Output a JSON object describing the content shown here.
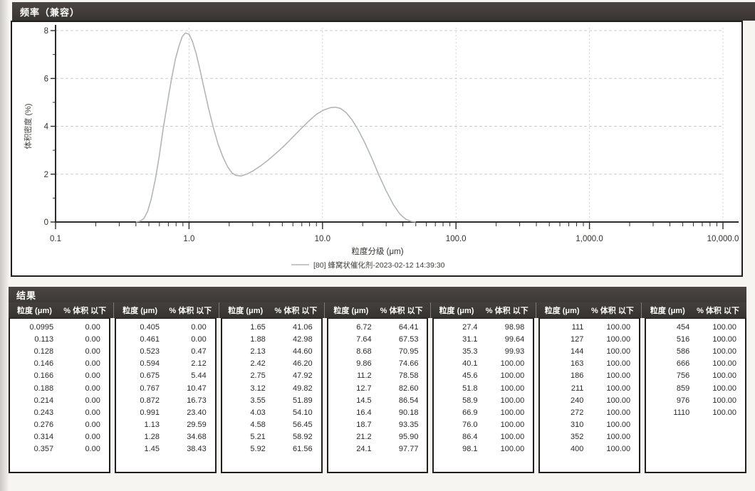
{
  "chart_panel": {
    "title": "频率（兼容）"
  },
  "chart_data": {
    "type": "line",
    "title": "频率（兼容）",
    "xlabel": "粒度分级 (μm)",
    "ylabel": "体积密度 (%)",
    "x_scale": "log",
    "xlim": [
      0.1,
      10000
    ],
    "ylim": [
      0,
      8
    ],
    "x_tick_labels": [
      "0.1",
      "1.0",
      "10.0",
      "100.0",
      "1,000.0",
      "10,000.0"
    ],
    "y_tick_values": [
      0,
      2,
      4,
      6,
      8
    ],
    "grid": true,
    "legend_position": "bottom-center",
    "series": [
      {
        "name": "[80] 蜂窝状催化剂-2023-02-12 14:39:30",
        "color": "#b3b6b9",
        "points": [
          [
            0.4,
            0.0
          ],
          [
            0.43,
            0.04
          ],
          [
            0.46,
            0.15
          ],
          [
            0.49,
            0.45
          ],
          [
            0.52,
            0.95
          ],
          [
            0.56,
            1.8
          ],
          [
            0.6,
            2.8
          ],
          [
            0.64,
            3.9
          ],
          [
            0.69,
            5.0
          ],
          [
            0.74,
            6.0
          ],
          [
            0.79,
            6.8
          ],
          [
            0.84,
            7.35
          ],
          [
            0.89,
            7.75
          ],
          [
            0.94,
            7.9
          ],
          [
            1.0,
            7.85
          ],
          [
            1.06,
            7.55
          ],
          [
            1.13,
            7.05
          ],
          [
            1.21,
            6.35
          ],
          [
            1.3,
            5.55
          ],
          [
            1.4,
            4.75
          ],
          [
            1.52,
            3.95
          ],
          [
            1.65,
            3.25
          ],
          [
            1.8,
            2.7
          ],
          [
            1.95,
            2.3
          ],
          [
            2.1,
            2.05
          ],
          [
            2.25,
            1.95
          ],
          [
            2.45,
            1.92
          ],
          [
            2.7,
            2.0
          ],
          [
            3.0,
            2.13
          ],
          [
            3.4,
            2.33
          ],
          [
            3.9,
            2.58
          ],
          [
            4.5,
            2.88
          ],
          [
            5.2,
            3.2
          ],
          [
            6.0,
            3.55
          ],
          [
            6.9,
            3.9
          ],
          [
            7.9,
            4.22
          ],
          [
            9.0,
            4.5
          ],
          [
            10.2,
            4.68
          ],
          [
            11.5,
            4.78
          ],
          [
            12.5,
            4.8
          ],
          [
            13.6,
            4.75
          ],
          [
            15.0,
            4.58
          ],
          [
            16.6,
            4.28
          ],
          [
            18.5,
            3.85
          ],
          [
            20.8,
            3.3
          ],
          [
            23.5,
            2.65
          ],
          [
            26.5,
            1.95
          ],
          [
            30.0,
            1.3
          ],
          [
            34.0,
            0.72
          ],
          [
            38.0,
            0.33
          ],
          [
            42.0,
            0.12
          ],
          [
            46.0,
            0.03
          ],
          [
            50.0,
            0.0
          ]
        ]
      }
    ]
  },
  "results_table": {
    "title": "结果",
    "column_headers": {
      "size": "粒度 (μm)",
      "pct": "% 体积 以下"
    },
    "num_groups": 7,
    "groups": [
      [
        [
          "0.0995",
          "0.00"
        ],
        [
          "0.113",
          "0.00"
        ],
        [
          "0.128",
          "0.00"
        ],
        [
          "0.146",
          "0.00"
        ],
        [
          "0.166",
          "0.00"
        ],
        [
          "0.188",
          "0.00"
        ],
        [
          "0.214",
          "0.00"
        ],
        [
          "0.243",
          "0.00"
        ],
        [
          "0.276",
          "0.00"
        ],
        [
          "0.314",
          "0.00"
        ],
        [
          "0.357",
          "0.00"
        ]
      ],
      [
        [
          "0.405",
          "0.00"
        ],
        [
          "0.461",
          "0.00"
        ],
        [
          "0.523",
          "0.47"
        ],
        [
          "0.594",
          "2.12"
        ],
        [
          "0.675",
          "5.44"
        ],
        [
          "0.767",
          "10.47"
        ],
        [
          "0.872",
          "16.73"
        ],
        [
          "0.991",
          "23.40"
        ],
        [
          "1.13",
          "29.59"
        ],
        [
          "1.28",
          "34.68"
        ],
        [
          "1.45",
          "38.43"
        ]
      ],
      [
        [
          "1.65",
          "41.06"
        ],
        [
          "1.88",
          "42.98"
        ],
        [
          "2.13",
          "44.60"
        ],
        [
          "2.42",
          "46.20"
        ],
        [
          "2.75",
          "47.92"
        ],
        [
          "3.12",
          "49.82"
        ],
        [
          "3.55",
          "51.89"
        ],
        [
          "4.03",
          "54.10"
        ],
        [
          "4.58",
          "56.45"
        ],
        [
          "5.21",
          "58.92"
        ],
        [
          "5.92",
          "61.56"
        ]
      ],
      [
        [
          "6.72",
          "64.41"
        ],
        [
          "7.64",
          "67.53"
        ],
        [
          "8.68",
          "70.95"
        ],
        [
          "9.86",
          "74.66"
        ],
        [
          "11.2",
          "78.58"
        ],
        [
          "12.7",
          "82.60"
        ],
        [
          "14.5",
          "86.54"
        ],
        [
          "16.4",
          "90.18"
        ],
        [
          "18.7",
          "93.35"
        ],
        [
          "21.2",
          "95.90"
        ],
        [
          "24.1",
          "97.77"
        ]
      ],
      [
        [
          "27.4",
          "98.98"
        ],
        [
          "31.1",
          "99.64"
        ],
        [
          "35.3",
          "99.93"
        ],
        [
          "40.1",
          "100.00"
        ],
        [
          "45.6",
          "100.00"
        ],
        [
          "51.8",
          "100.00"
        ],
        [
          "58.9",
          "100.00"
        ],
        [
          "66.9",
          "100.00"
        ],
        [
          "76.0",
          "100.00"
        ],
        [
          "86.4",
          "100.00"
        ],
        [
          "98.1",
          "100.00"
        ]
      ],
      [
        [
          "111",
          "100.00"
        ],
        [
          "127",
          "100.00"
        ],
        [
          "144",
          "100.00"
        ],
        [
          "163",
          "100.00"
        ],
        [
          "186",
          "100.00"
        ],
        [
          "211",
          "100.00"
        ],
        [
          "240",
          "100.00"
        ],
        [
          "272",
          "100.00"
        ],
        [
          "310",
          "100.00"
        ],
        [
          "352",
          "100.00"
        ],
        [
          "400",
          "100.00"
        ]
      ],
      [
        [
          "454",
          "100.00"
        ],
        [
          "516",
          "100.00"
        ],
        [
          "586",
          "100.00"
        ],
        [
          "666",
          "100.00"
        ],
        [
          "756",
          "100.00"
        ],
        [
          "859",
          "100.00"
        ],
        [
          "976",
          "100.00"
        ],
        [
          "1110",
          "100.00"
        ]
      ]
    ]
  },
  "colors": {
    "header_bar": "#3e3a37",
    "panel_border": "#211f1d",
    "curve": "#b3b6b9",
    "gridline": "#cccccc",
    "axis": "#2d2b29"
  }
}
